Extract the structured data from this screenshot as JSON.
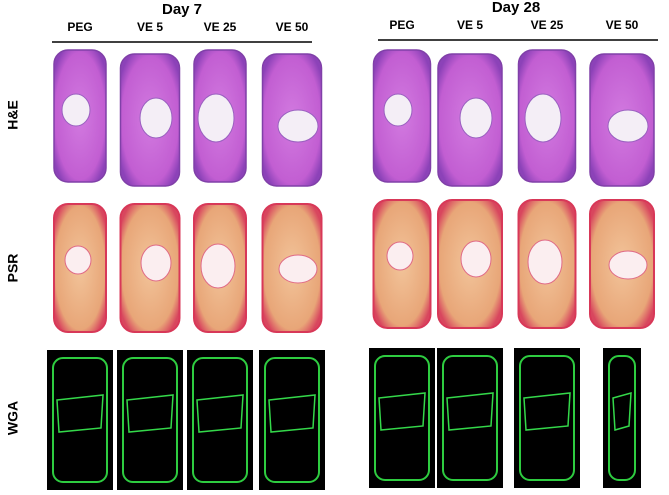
{
  "groups": [
    {
      "title": "Day 7",
      "columns": [
        "PEG",
        "VE 5",
        "VE 25",
        "VE 50"
      ]
    },
    {
      "title": "Day 28",
      "columns": [
        "PEG",
        "VE 5",
        "VE 25",
        "VE 50"
      ]
    }
  ],
  "rows": [
    "H&E",
    "PSR",
    "WGA"
  ]
}
